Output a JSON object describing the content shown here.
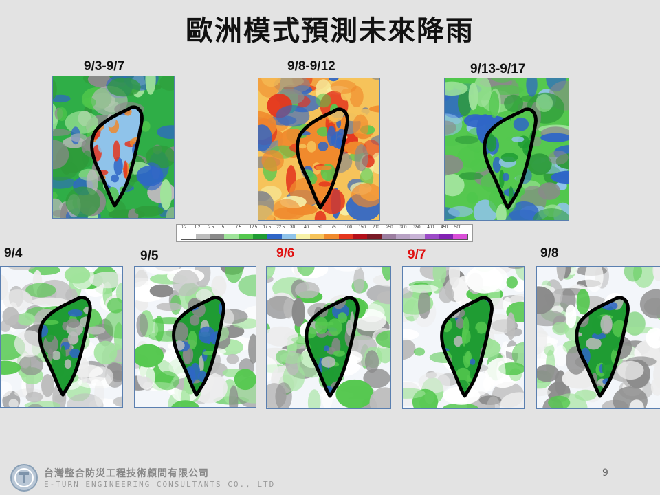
{
  "title": "歐洲模式預測未來降雨",
  "top_maps": [
    {
      "label": "9/3-9/7",
      "scheme": "heavy"
    },
    {
      "label": "9/8-9/12",
      "scheme": "extreme"
    },
    {
      "label": "9/13-9/17",
      "scheme": "moderate"
    }
  ],
  "daily_maps": [
    {
      "label": "9/4",
      "highlight": false
    },
    {
      "label": "9/5",
      "highlight": false
    },
    {
      "label": "9/6",
      "highlight": true
    },
    {
      "label": "9/7",
      "highlight": true
    },
    {
      "label": "9/8",
      "highlight": false
    }
  ],
  "legend": {
    "ticks": [
      "0.2",
      "1.2",
      "2.5",
      "5",
      "7.5",
      "12.5",
      "17.5",
      "22.5",
      "30",
      "40",
      "50",
      "75",
      "100",
      "150",
      "200",
      "250",
      "300",
      "350",
      "400",
      "450",
      "500"
    ],
    "colors": [
      "#ffffff",
      "#bcbcbc",
      "#8a8a8a",
      "#9fe39a",
      "#55c84f",
      "#1f9c33",
      "#2f66c7",
      "#8fc3ea",
      "#f7f1a8",
      "#f6c35a",
      "#f08a2d",
      "#e4361e",
      "#b5101a",
      "#7a1a26",
      "#9c7ea0",
      "#b8a2c4",
      "#c8b3d6",
      "#9c4bc7",
      "#8222b2",
      "#d94fd8"
    ]
  },
  "footer": {
    "company": "台灣整合防災工程技術顧問有限公司",
    "company_en": "E-TURN ENGINEERING CONSULTANTS CO., LTD",
    "page": "9"
  }
}
